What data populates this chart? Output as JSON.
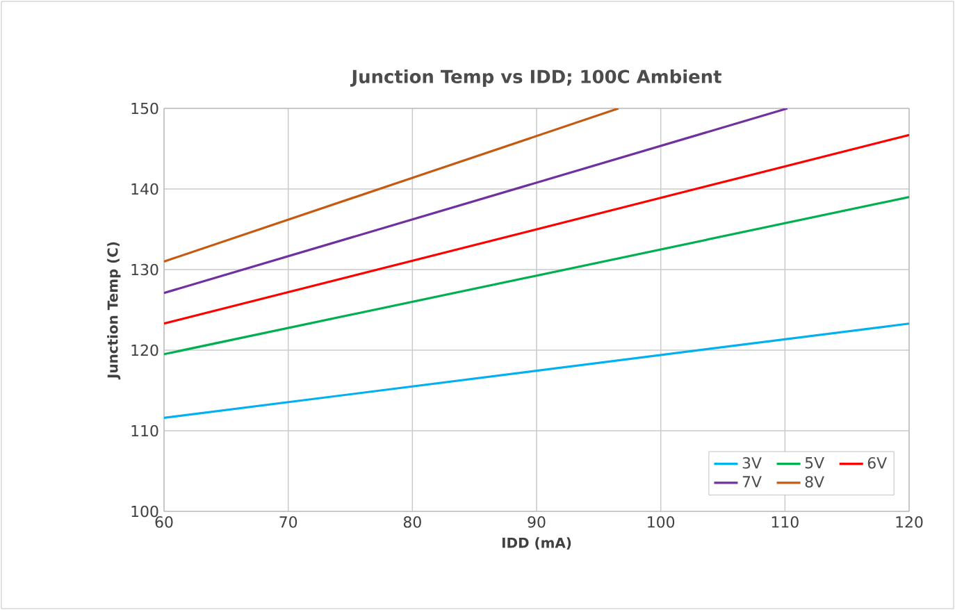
{
  "chart_data": {
    "type": "line",
    "title": "Junction Temp vs IDD; 100C Ambient",
    "xlabel": "IDD (mA)",
    "ylabel": "Junction Temp (C)",
    "xlim": [
      60,
      120
    ],
    "ylim": [
      100,
      150
    ],
    "xticks": [
      60,
      70,
      80,
      90,
      100,
      110,
      120
    ],
    "yticks": [
      100,
      110,
      120,
      130,
      140,
      150
    ],
    "grid": true,
    "legend": "bottom right",
    "marker": "none",
    "line_style": "solid",
    "series": [
      {
        "name": "3V",
        "color": "#00b0f0",
        "x": [
          60,
          120
        ],
        "values": [
          111.6,
          123.3
        ]
      },
      {
        "name": "5V",
        "color": "#00b050",
        "x": [
          60,
          120
        ],
        "values": [
          119.5,
          139.0
        ]
      },
      {
        "name": "6V",
        "color": "#ff0000",
        "x": [
          60,
          120
        ],
        "values": [
          123.3,
          146.7
        ]
      },
      {
        "name": "7V",
        "color": "#7030a0",
        "x": [
          60,
          110.2
        ],
        "values": [
          127.1,
          150
        ]
      },
      {
        "name": "8V",
        "color": "#c55a11",
        "x": [
          60,
          96.6
        ],
        "values": [
          131.0,
          150
        ]
      }
    ]
  }
}
